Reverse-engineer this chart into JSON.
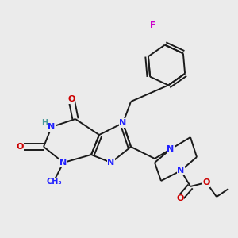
{
  "bg_color": "#ebebeb",
  "bond_color": "#1a1a1a",
  "N_color": "#2020ff",
  "O_color": "#cc0000",
  "F_color": "#cc00cc",
  "H_color": "#4a9a9a",
  "line_width": 1.4,
  "dbo": 0.12,
  "font_size": 8,
  "fig_width": 3.0,
  "fig_height": 3.0,
  "xlim": [
    0,
    10
  ],
  "ylim": [
    0,
    10
  ]
}
